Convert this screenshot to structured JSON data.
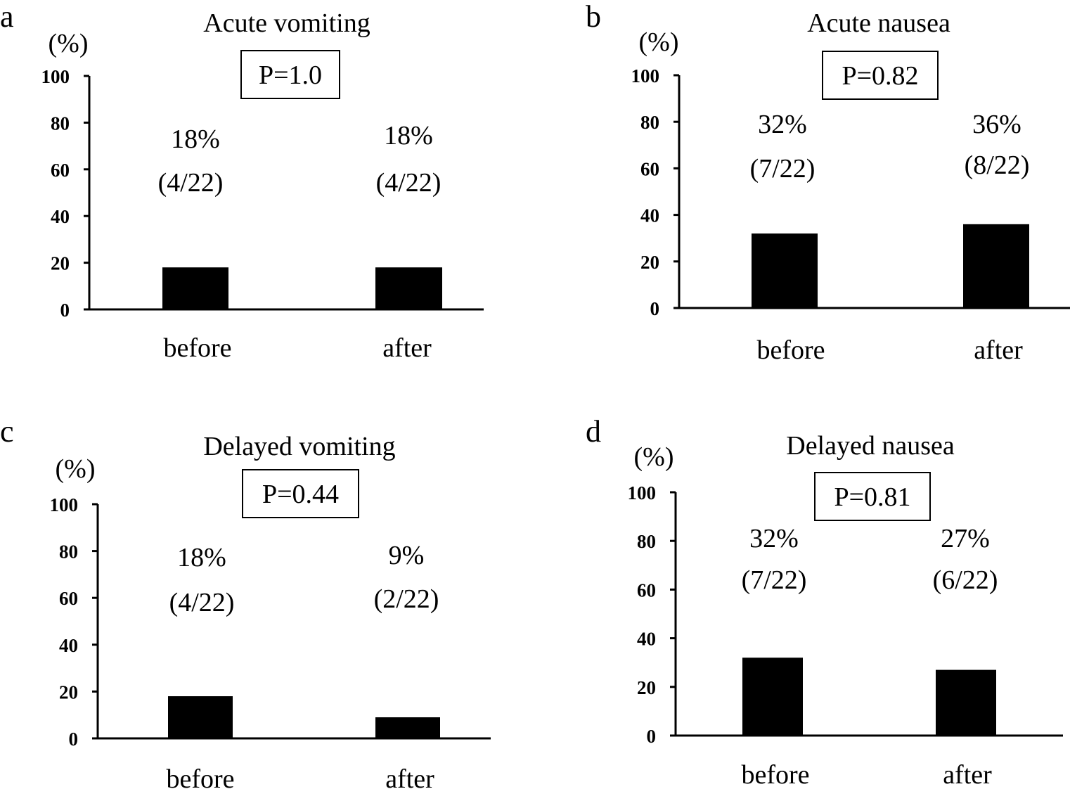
{
  "chart_data": [
    {
      "panel": "a",
      "type": "bar",
      "title": "Acute vomiting",
      "ylabel": "(%)",
      "p_value": "P=1.0",
      "categories": [
        "before",
        "after"
      ],
      "values": [
        18,
        18
      ],
      "value_labels": [
        "18%",
        "18%"
      ],
      "count_labels": [
        "(4/22)",
        "(4/22)"
      ],
      "ylim": [
        0,
        100
      ],
      "yticks": [
        0,
        20,
        40,
        60,
        80,
        100
      ],
      "bar_color": "#000000",
      "grid": false
    },
    {
      "panel": "b",
      "type": "bar",
      "title": "Acute nausea",
      "ylabel": "(%)",
      "p_value": "P=0.82",
      "categories": [
        "before",
        "after"
      ],
      "values": [
        32,
        36
      ],
      "value_labels": [
        "32%",
        "36%"
      ],
      "count_labels": [
        "(7/22)",
        "(8/22)"
      ],
      "ylim": [
        0,
        100
      ],
      "yticks": [
        0,
        20,
        40,
        60,
        80,
        100
      ],
      "bar_color": "#000000",
      "grid": false
    },
    {
      "panel": "c",
      "type": "bar",
      "title": "Delayed vomiting",
      "ylabel": "(%)",
      "p_value": "P=0.44",
      "categories": [
        "before",
        "after"
      ],
      "values": [
        18,
        9
      ],
      "value_labels": [
        "18%",
        "9%"
      ],
      "count_labels": [
        "(4/22)",
        "(2/22)"
      ],
      "ylim": [
        0,
        100
      ],
      "yticks": [
        0,
        20,
        40,
        60,
        80,
        100
      ],
      "bar_color": "#000000",
      "grid": false
    },
    {
      "panel": "d",
      "type": "bar",
      "title": "Delayed nausea",
      "ylabel": "(%)",
      "p_value": "P=0.81",
      "categories": [
        "before",
        "after"
      ],
      "values": [
        32,
        27
      ],
      "value_labels": [
        "32%",
        "27%"
      ],
      "count_labels": [
        "(7/22)",
        "(6/22)"
      ],
      "ylim": [
        0,
        100
      ],
      "yticks": [
        0,
        20,
        40,
        60,
        80,
        100
      ],
      "bar_color": "#000000",
      "grid": false
    }
  ]
}
